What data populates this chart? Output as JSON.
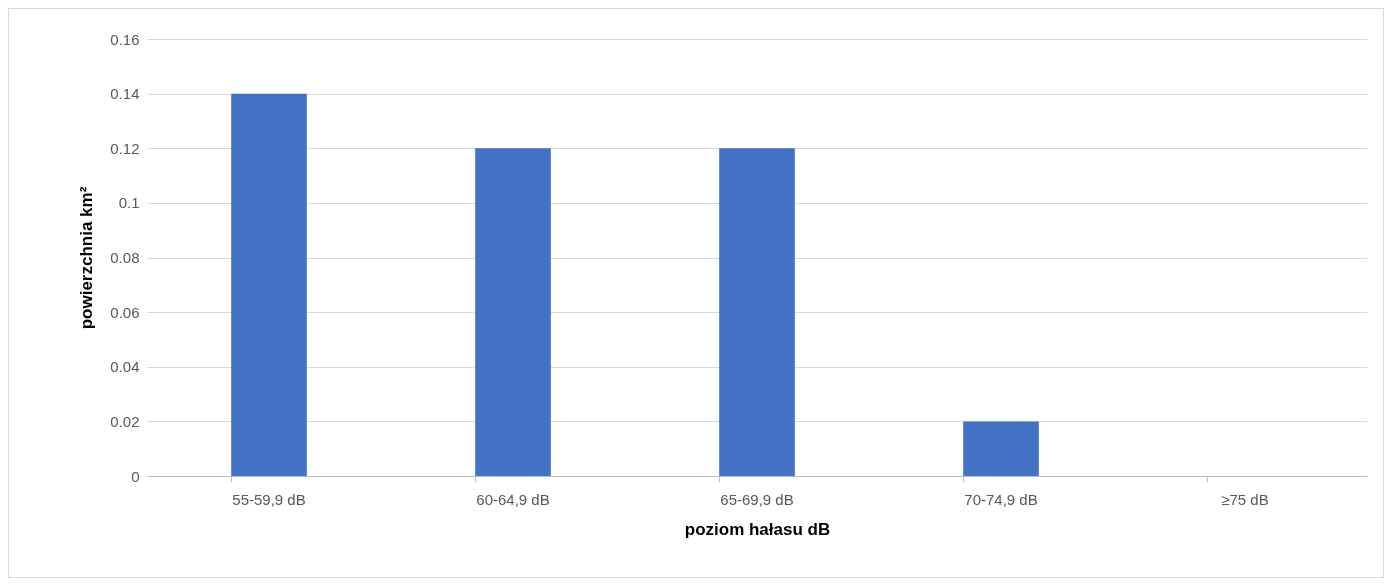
{
  "chart_data": {
    "type": "bar",
    "xlabel": "poziom hałasu dB",
    "ylabel": "powierzchnia km²",
    "categories": [
      "55-59,9 dB",
      "60-64,9 dB",
      "65-69,9 dB",
      "70-74,9 dB",
      "≥75 dB"
    ],
    "values": [
      0.14,
      0.12,
      0.12,
      0.02,
      0
    ],
    "color": "#4472c4",
    "ylim": [
      0,
      0.16
    ],
    "yticks": [
      0,
      0.02,
      0.04,
      0.06,
      0.08,
      0.1,
      0.12,
      0.14,
      0.16
    ],
    "grid": "y"
  }
}
